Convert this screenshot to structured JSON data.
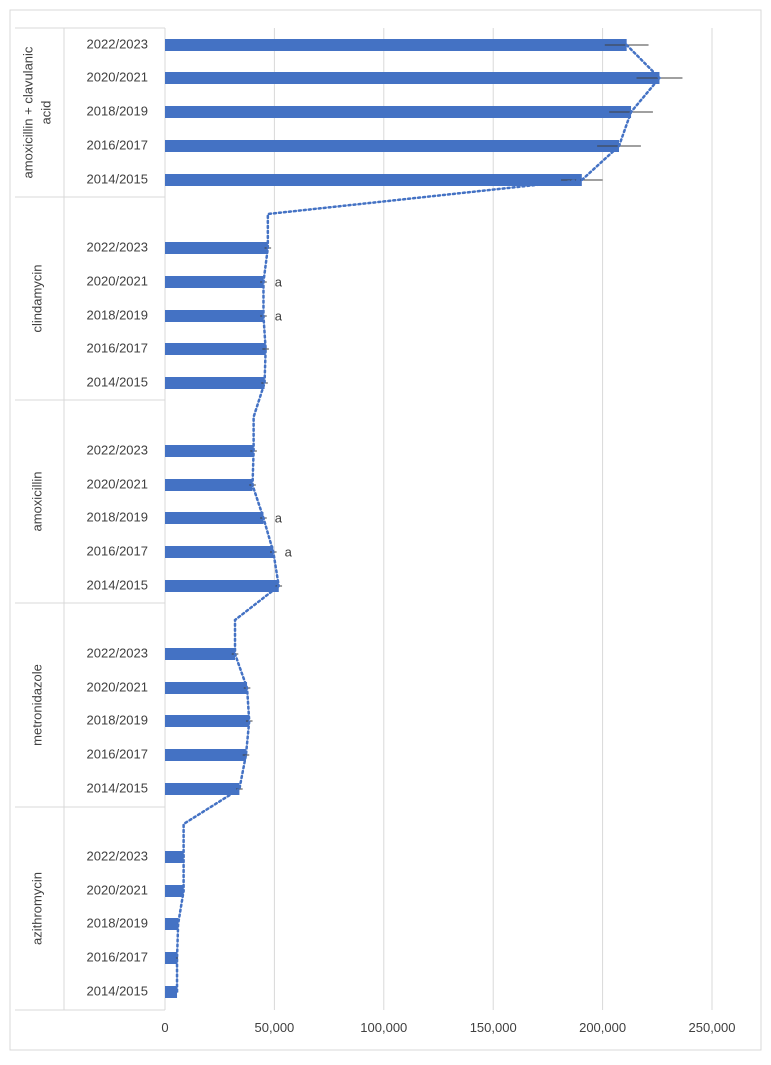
{
  "chart_data": {
    "type": "bar",
    "orientation": "horizontal",
    "title": "",
    "xlabel": "",
    "ylabel": "",
    "xlim": [
      0,
      250000
    ],
    "x_ticks": [
      0,
      50000,
      100000,
      150000,
      200000,
      250000
    ],
    "x_tick_labels": [
      "0",
      "50,000",
      "100,000",
      "150,000",
      "200,000",
      "250,000"
    ],
    "grid": "vertical",
    "legend": "none",
    "bar_color": "#4472C4",
    "trend_color": "#4472C4",
    "error_bar_color": "#404040",
    "annotation_color": "#404040",
    "border_color": "#D9D9D9",
    "grid_color": "#D9D9D9",
    "groups": [
      {
        "name": "amoxicillin + clavulanic acid",
        "name_lines": [
          "amoxicillin + clavulanic",
          "acid"
        ],
        "categories": [
          "2022/2023",
          "2020/2021",
          "2018/2019",
          "2016/2017",
          "2014/2015"
        ],
        "values": [
          211000,
          226000,
          213000,
          207500,
          190500
        ],
        "errors": [
          10000,
          10500,
          10000,
          10000,
          9500
        ],
        "annotations": [
          "",
          "",
          "",
          "",
          ""
        ]
      },
      {
        "name": "clindamycin",
        "name_lines": [
          "clindamycin"
        ],
        "categories": [
          "2022/2023",
          "2020/2021",
          "2018/2019",
          "2016/2017",
          "2014/2015"
        ],
        "values": [
          47000,
          45000,
          45000,
          46000,
          45500
        ],
        "errors": [
          1500,
          1500,
          1500,
          1500,
          1500
        ],
        "annotations": [
          "",
          "a",
          "a",
          "",
          ""
        ]
      },
      {
        "name": "amoxicillin",
        "name_lines": [
          "amoxicillin"
        ],
        "categories": [
          "2022/2023",
          "2020/2021",
          "2018/2019",
          "2016/2017",
          "2014/2015"
        ],
        "values": [
          40500,
          40000,
          45000,
          49500,
          52000
        ],
        "errors": [
          1500,
          1500,
          1500,
          1500,
          1500
        ],
        "annotations": [
          "",
          "",
          "a",
          "a",
          ""
        ]
      },
      {
        "name": "metronidazole",
        "name_lines": [
          "metronidazole"
        ],
        "categories": [
          "2022/2023",
          "2020/2021",
          "2018/2019",
          "2016/2017",
          "2014/2015"
        ],
        "values": [
          32000,
          37500,
          38500,
          37000,
          34000
        ],
        "errors": [
          1500,
          1500,
          1500,
          1500,
          1500
        ],
        "annotations": [
          "",
          "",
          "",
          "",
          ""
        ]
      },
      {
        "name": "azithromycin",
        "name_lines": [
          "azithromycin"
        ],
        "categories": [
          "2022/2023",
          "2020/2021",
          "2018/2019",
          "2016/2017",
          "2014/2015"
        ],
        "values": [
          8500,
          8500,
          6000,
          5500,
          5500
        ],
        "errors": [
          500,
          500,
          500,
          500,
          500
        ],
        "annotations": [
          "",
          "",
          "",
          "",
          ""
        ]
      }
    ]
  }
}
